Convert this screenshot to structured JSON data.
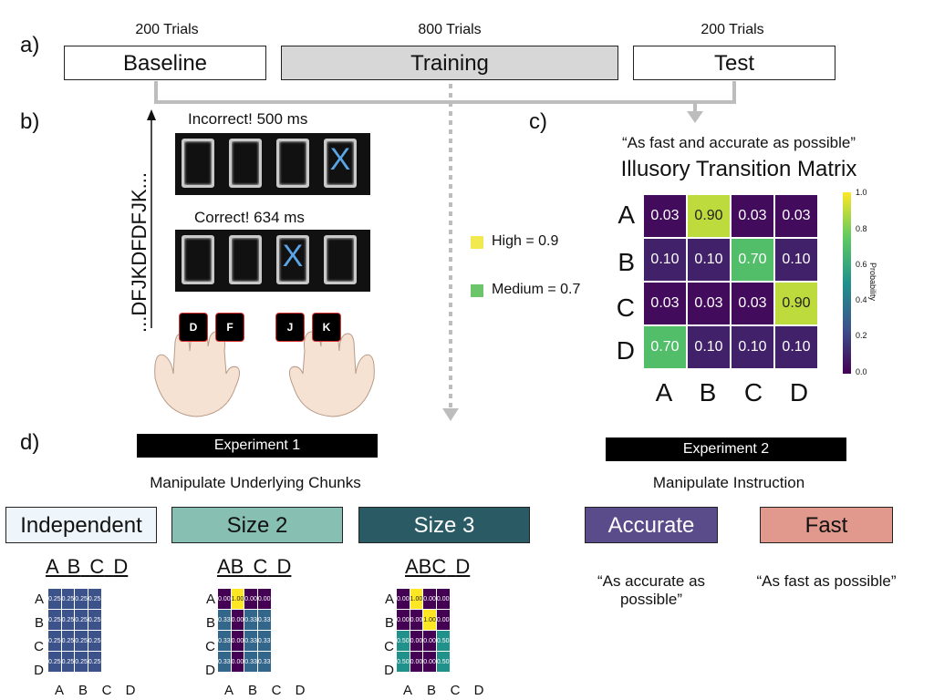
{
  "panels": {
    "a": "a)",
    "b": "b)",
    "c": "c)",
    "d": "d)"
  },
  "phases": [
    {
      "count": "200 Trials",
      "label": "Baseline"
    },
    {
      "count": "800 Trials",
      "label": "Training"
    },
    {
      "count": "200 Trials",
      "label": "Test"
    }
  ],
  "task": {
    "sequence": "...DFJKDFDFJK...",
    "feedback_incorrect": "Incorrect! 500 ms",
    "feedback_correct": "Correct! 634 ms",
    "stimulus": "X",
    "incorrect_x_slot": 3,
    "correct_x_slot": 2,
    "keys": [
      "D",
      "F",
      "J",
      "K"
    ]
  },
  "legend": [
    {
      "label": "High = 0.9",
      "color": "#f2e94e"
    },
    {
      "label": "Medium = 0.7",
      "color": "#6cc56a"
    }
  ],
  "matrix": {
    "instruction": "“As fast and accurate as possible”",
    "title": "Illusory Transition Matrix",
    "rows": [
      "A",
      "B",
      "C",
      "D"
    ],
    "cols": [
      "A",
      "B",
      "C",
      "D"
    ],
    "values": [
      [
        "0.03",
        "0.90",
        "0.03",
        "0.03"
      ],
      [
        "0.10",
        "0.10",
        "0.70",
        "0.10"
      ],
      [
        "0.03",
        "0.03",
        "0.03",
        "0.90"
      ],
      [
        "0.70",
        "0.10",
        "0.10",
        "0.10"
      ]
    ],
    "colorbar_label": "Probability",
    "colorbar_ticks": [
      "1.0",
      "0.8",
      "0.6",
      "0.4",
      "0.2",
      "0.0"
    ]
  },
  "experiment1": {
    "label": "Experiment 1",
    "subtitle": "Manipulate Underlying Chunks",
    "conditions": [
      {
        "label": "Independent",
        "color": "#eef6fb",
        "chunks": [
          {
            "text": "A"
          },
          {
            "text": "B"
          },
          {
            "text": "C"
          },
          {
            "text": "D"
          }
        ],
        "values": [
          [
            "0.25",
            "0.25",
            "0.25",
            "0.25"
          ],
          [
            "0.25",
            "0.25",
            "0.25",
            "0.25"
          ],
          [
            "0.25",
            "0.25",
            "0.25",
            "0.25"
          ],
          [
            "0.25",
            "0.25",
            "0.25",
            "0.25"
          ]
        ]
      },
      {
        "label": "Size 2",
        "color": "#87bfb2",
        "chunks": [
          {
            "text": "AB"
          },
          {
            "text": "C"
          },
          {
            "text": "D"
          }
        ],
        "values": [
          [
            "0.00",
            "1.00",
            "0.00",
            "0.00"
          ],
          [
            "0.33",
            "0.00",
            "0.33",
            "0.33"
          ],
          [
            "0.33",
            "0.00",
            "0.33",
            "0.33"
          ],
          [
            "0.33",
            "0.00",
            "0.33",
            "0.33"
          ]
        ]
      },
      {
        "label": "Size 3",
        "color": "#2a5a64",
        "chunks": [
          {
            "text": "ABC"
          },
          {
            "text": "D"
          }
        ],
        "values": [
          [
            "0.00",
            "1.00",
            "0.00",
            "0.00"
          ],
          [
            "0.00",
            "0.00",
            "1.00",
            "0.00"
          ],
          [
            "0.50",
            "0.00",
            "0.00",
            "0.50"
          ],
          [
            "0.50",
            "0.00",
            "0.00",
            "0.50"
          ]
        ]
      }
    ],
    "letters": [
      "A",
      "B",
      "C",
      "D"
    ]
  },
  "experiment2": {
    "label": "Experiment 2",
    "subtitle": "Manipulate Instruction",
    "conditions": [
      {
        "label": "Accurate",
        "color": "#5a4b8a",
        "quote": "“As accurate as possible”"
      },
      {
        "label": "Fast",
        "color": "#e0998c",
        "quote": "“As fast as possible”"
      }
    ]
  }
}
